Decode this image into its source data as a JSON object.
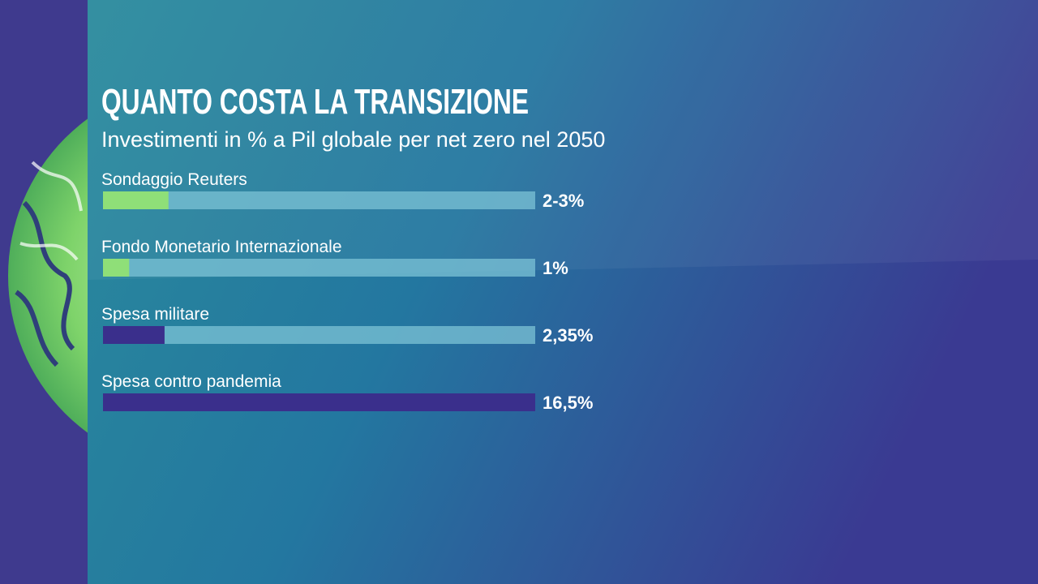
{
  "chart_data": {
    "type": "bar",
    "orientation": "horizontal",
    "title": "QUANTO COSTA LA TRANSIZIONE",
    "subtitle": "Investimenti in % a Pil globale per net zero nel 2050",
    "categories": [
      "Sondaggio Reuters",
      "Fondo Monetario Internazionale",
      "Spesa militare",
      "Spesa contro pandemia"
    ],
    "values": [
      2.5,
      1,
      2.35,
      16.5
    ],
    "value_labels": [
      "2-3%",
      "1%",
      "2,35%",
      "16,5%"
    ],
    "colors": [
      "#8fdf78",
      "#8fdf78",
      "#3a2f8c",
      "#3a2f8c"
    ],
    "track_color": "#7cc3d6",
    "xlim": [
      0,
      16.5
    ]
  }
}
